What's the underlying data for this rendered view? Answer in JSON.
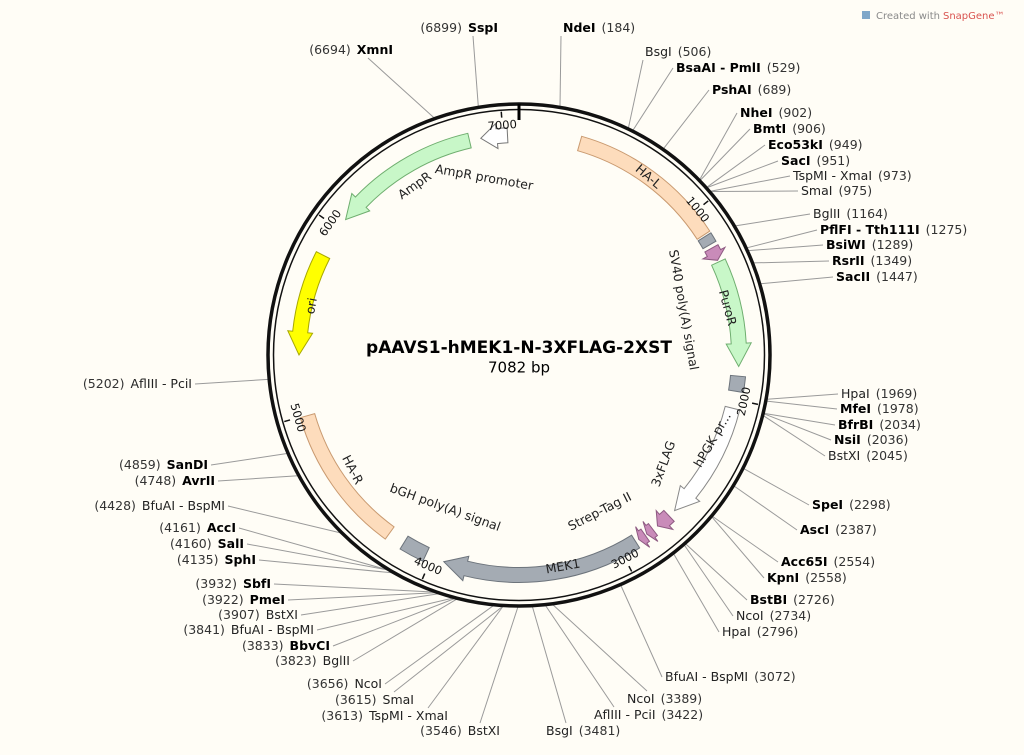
{
  "header": {
    "credit": "Created with",
    "brand": "SnapGene™"
  },
  "map": {
    "title": "pAAVS1-hMEK1-N-3XFLAG-2XST",
    "size": "7082 bp",
    "ticks": [
      1000,
      2000,
      3000,
      4000,
      5000,
      6000,
      7000
    ],
    "features": [
      "HA-L",
      "PuroR",
      "SV40 poly(A) signal",
      "hPGK pr...",
      "3xFLAG",
      "Strep-Tag II",
      "MEK1",
      "bGH poly(A) signal",
      "HA-R",
      "ori",
      "AmpR",
      "AmpR promoter"
    ],
    "sites": [
      {
        "name": "NdeI",
        "position": "(184)",
        "bold": true
      },
      {
        "name": "BsgI",
        "position": "(506)",
        "bold": false
      },
      {
        "name": "BsaAI - PmlI",
        "position": "(529)",
        "bold": true
      },
      {
        "name": "PshAI",
        "position": "(689)",
        "bold": true
      },
      {
        "name": "NheI",
        "position": "(902)",
        "bold": true
      },
      {
        "name": "BmtI",
        "position": "(906)",
        "bold": true
      },
      {
        "name": "Eco53kI",
        "position": "(949)",
        "bold": true
      },
      {
        "name": "SacI",
        "position": "(951)",
        "bold": true
      },
      {
        "name": "TspMI - XmaI",
        "position": "(973)",
        "bold": false
      },
      {
        "name": "SmaI",
        "position": "(975)",
        "bold": false
      },
      {
        "name": "BglII",
        "position": "(1164)",
        "bold": false
      },
      {
        "name": "PflFI - Tth111I",
        "position": "(1275)",
        "bold": true
      },
      {
        "name": "BsiWI",
        "position": "(1289)",
        "bold": true
      },
      {
        "name": "RsrII",
        "position": "(1349)",
        "bold": true
      },
      {
        "name": "SacII",
        "position": "(1447)",
        "bold": true
      },
      {
        "name": "HpaI",
        "position": "(1969)",
        "bold": false
      },
      {
        "name": "MfeI",
        "position": "(1978)",
        "bold": true
      },
      {
        "name": "BfrBI",
        "position": "(2034)",
        "bold": true
      },
      {
        "name": "NsiI",
        "position": "(2036)",
        "bold": true
      },
      {
        "name": "BstXI",
        "position": "(2045)",
        "bold": false
      },
      {
        "name": "SpeI",
        "position": "(2298)",
        "bold": true
      },
      {
        "name": "AscI",
        "position": "(2387)",
        "bold": true
      },
      {
        "name": "Acc65I",
        "position": "(2554)",
        "bold": true
      },
      {
        "name": "KpnI",
        "position": "(2558)",
        "bold": true
      },
      {
        "name": "BstBI",
        "position": "(2726)",
        "bold": true
      },
      {
        "name": "NcoI",
        "position": "(2734)",
        "bold": false
      },
      {
        "name": "HpaI",
        "position": "(2796)",
        "bold": false
      },
      {
        "name": "BfuAI - BspMI",
        "position": "(3072)",
        "bold": false
      },
      {
        "name": "NcoI",
        "position": "(3389)",
        "bold": false
      },
      {
        "name": "AflIII - PciI",
        "position": "(3422)",
        "bold": false
      },
      {
        "name": "BsgI",
        "position": "(3481)",
        "bold": false
      },
      {
        "name": "BstXI",
        "position": "(3546)",
        "bold": false
      },
      {
        "name": "TspMI - XmaI",
        "position": "(3613)",
        "bold": false
      },
      {
        "name": "SmaI",
        "position": "(3615)",
        "bold": false
      },
      {
        "name": "NcoI",
        "position": "(3656)",
        "bold": false
      },
      {
        "name": "BglII",
        "position": "(3823)",
        "bold": false
      },
      {
        "name": "BbvCI",
        "position": "(3833)",
        "bold": true
      },
      {
        "name": "BfuAI - BspMI",
        "position": "(3841)",
        "bold": false
      },
      {
        "name": "BstXI",
        "position": "(3907)",
        "bold": false
      },
      {
        "name": "PmeI",
        "position": "(3922)",
        "bold": true
      },
      {
        "name": "SbfI",
        "position": "(3932)",
        "bold": true
      },
      {
        "name": "SphI",
        "position": "(4135)",
        "bold": true
      },
      {
        "name": "SalI",
        "position": "(4160)",
        "bold": true
      },
      {
        "name": "AccI",
        "position": "(4161)",
        "bold": true
      },
      {
        "name": "BfuAI - BspMI",
        "position": "(4428)",
        "bold": false
      },
      {
        "name": "AvrII",
        "position": "(4748)",
        "bold": true
      },
      {
        "name": "SanDI",
        "position": "(4859)",
        "bold": true
      },
      {
        "name": "AflIII - PciI",
        "position": "(5202)",
        "bold": false
      },
      {
        "name": "XmnI",
        "position": "(6694)",
        "bold": true
      },
      {
        "name": "SspI",
        "position": "(6899)",
        "bold": true
      }
    ]
  }
}
